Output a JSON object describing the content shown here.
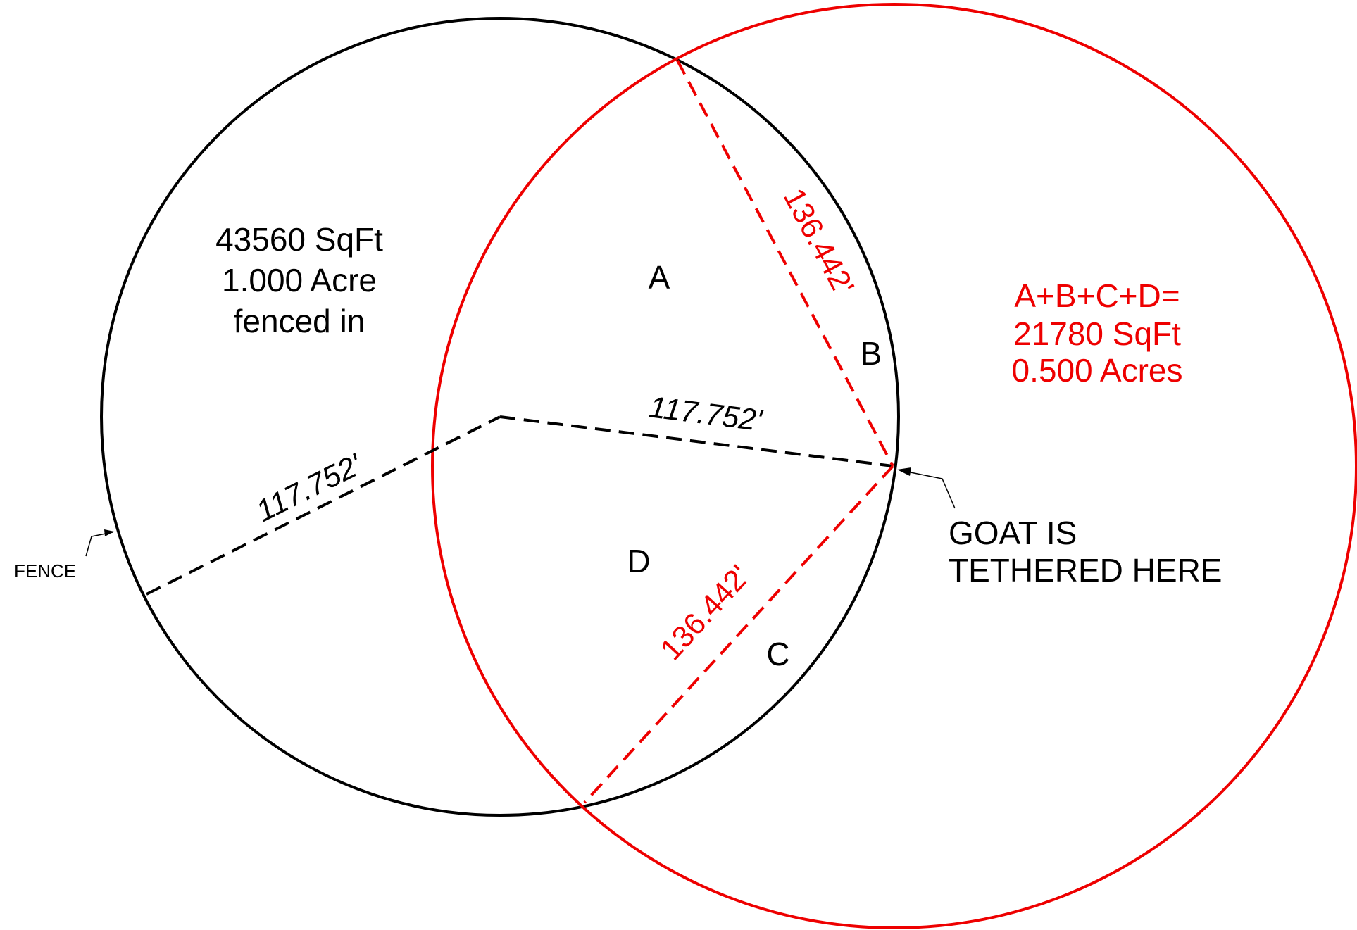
{
  "colors": {
    "fence_circle": "#000000",
    "tether_circle": "#ee0000",
    "black_text": "#000000",
    "red_text": "#ee0000"
  },
  "fence_area": {
    "line1": "43560 SqFt",
    "line2": "1.000 Acre",
    "line3": "fenced in"
  },
  "region_labels": {
    "a": "A",
    "b": "B",
    "c": "C",
    "d": "D"
  },
  "grazing_area": {
    "line1": "A+B+C+D=",
    "line2": "21780 SqFt",
    "line3": "0.500 Acres"
  },
  "dimensions": {
    "fence_radius_left": "117.752'",
    "fence_radius_right": "117.752'",
    "tether_upper": "136.442'",
    "tether_lower": "136.442'"
  },
  "callouts": {
    "fence": "FENCE",
    "goat_line1": "GOAT IS",
    "goat_line2": "TETHERED HERE"
  }
}
